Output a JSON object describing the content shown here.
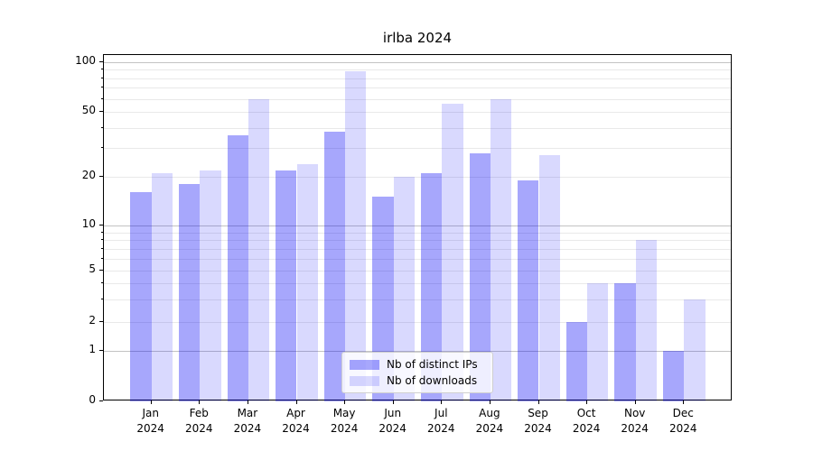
{
  "chart_data": {
    "type": "bar",
    "title": "irlba 2024",
    "categories": [
      "Jan",
      "Feb",
      "Mar",
      "Apr",
      "May",
      "Jun",
      "Jul",
      "Aug",
      "Sep",
      "Oct",
      "Nov",
      "Dec"
    ],
    "year": "2024",
    "series": [
      {
        "name": "Nb of distinct IPs",
        "color_hex": "#a7a7f8",
        "fill": "rgba(0,0,245,0.345)",
        "values": [
          16,
          18,
          36,
          22,
          38,
          15,
          21,
          28,
          19,
          2,
          4,
          1
        ]
      },
      {
        "name": "Nb of downloads",
        "color_hex": "#d9d9fa",
        "fill": "rgba(0,0,245,0.15)",
        "values": [
          21,
          22,
          60,
          24,
          88,
          20,
          56,
          60,
          27,
          4,
          8,
          3
        ]
      }
    ],
    "y_axis": {
      "scale": "symlog",
      "ticks": [
        0,
        1,
        2,
        5,
        10,
        20,
        50,
        100
      ],
      "minor_gridlines": [
        2,
        3,
        4,
        5,
        6,
        7,
        8,
        9,
        20,
        30,
        40,
        50,
        60,
        70,
        80,
        90
      ],
      "major_gridlines": [
        1,
        10,
        100
      ]
    },
    "xlabel": "",
    "ylabel": "",
    "grid": true,
    "legend_position": "lower center",
    "grid_major_color": "#c3c3c3",
    "grid_minor_color": "#e9e9e9",
    "spine_color": "#000000"
  }
}
